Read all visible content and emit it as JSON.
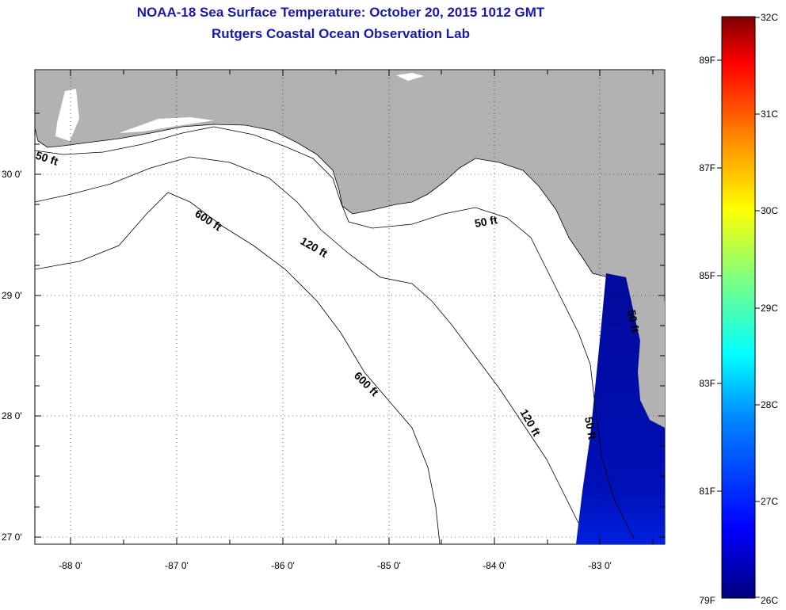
{
  "header": {
    "title": "NOAA-18 Sea Surface Temperature:  October 20, 2015 1012 GMT",
    "subtitle": "Rutgers Coastal Ocean Observation Lab"
  },
  "map": {
    "lat_labels": [
      "30 0'",
      "29 0'",
      "28 0'",
      "27 0'"
    ],
    "lon_labels": [
      "-88 0'",
      "-87 0'",
      "-86 0'",
      "-85 0'",
      "-84 0'",
      "-83 0'"
    ],
    "contour_labels": [
      "50 ft",
      "600 ft",
      "120 ft",
      "50 ft",
      "600 ft",
      "120 ft",
      "50 ft",
      "50 ft"
    ]
  },
  "colorbar": {
    "celsius_labels": [
      "32C",
      "31C",
      "30C",
      "29C",
      "28C",
      "27C",
      "26C"
    ],
    "fahrenheit_labels": [
      "89F",
      "87F",
      "85F",
      "83F",
      "81F",
      "79F"
    ],
    "colors": [
      "#00007f",
      "#0000ff",
      "#007fff",
      "#00ffff",
      "#7fff7f",
      "#ffff00",
      "#ff7f00",
      "#ff0000",
      "#7f0000"
    ]
  }
}
